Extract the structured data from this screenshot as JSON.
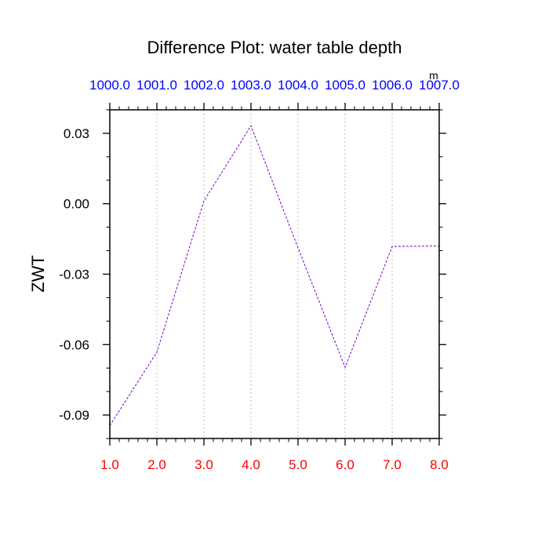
{
  "chart_data": {
    "type": "line",
    "title": "Difference Plot: water table depth",
    "ylabel": "ZWT",
    "top_axis_units": "m",
    "x": [
      1.0,
      2.0,
      3.0,
      4.0,
      5.0,
      6.0,
      7.0,
      8.0
    ],
    "xlim": [
      1.0,
      8.0
    ],
    "ylim": [
      -0.1,
      0.04
    ],
    "x_ticks": [
      1.0,
      2.0,
      3.0,
      4.0,
      5.0,
      6.0,
      7.0,
      8.0
    ],
    "x_tick_labels": [
      "1.0",
      "2.0",
      "3.0",
      "4.0",
      "5.0",
      "6.0",
      "7.0",
      "8.0"
    ],
    "top_tick_labels": [
      "1000.0",
      "1001.0",
      "1002.0",
      "1003.0",
      "1004.0",
      "1005.0",
      "1006.0",
      "1007.0"
    ],
    "y_ticks": [
      0.03,
      0.0,
      -0.03,
      -0.06,
      -0.09
    ],
    "y_tick_labels": [
      "0.03",
      "0.00",
      "-0.03",
      "-0.06",
      "-0.09"
    ],
    "series": [
      {
        "values": [
          -0.0945,
          -0.0632,
          0.0012,
          0.0332,
          -0.0188,
          -0.0697,
          -0.0182,
          -0.018
        ],
        "color": "#7B00C8",
        "dash": "dashed"
      }
    ],
    "grid": "vertical dotted",
    "colors": {
      "bottom_tick_labels": "#FF0000",
      "top_tick_labels": "#0000FF",
      "axis": "#000000",
      "grid": "#C8C8C8"
    }
  }
}
